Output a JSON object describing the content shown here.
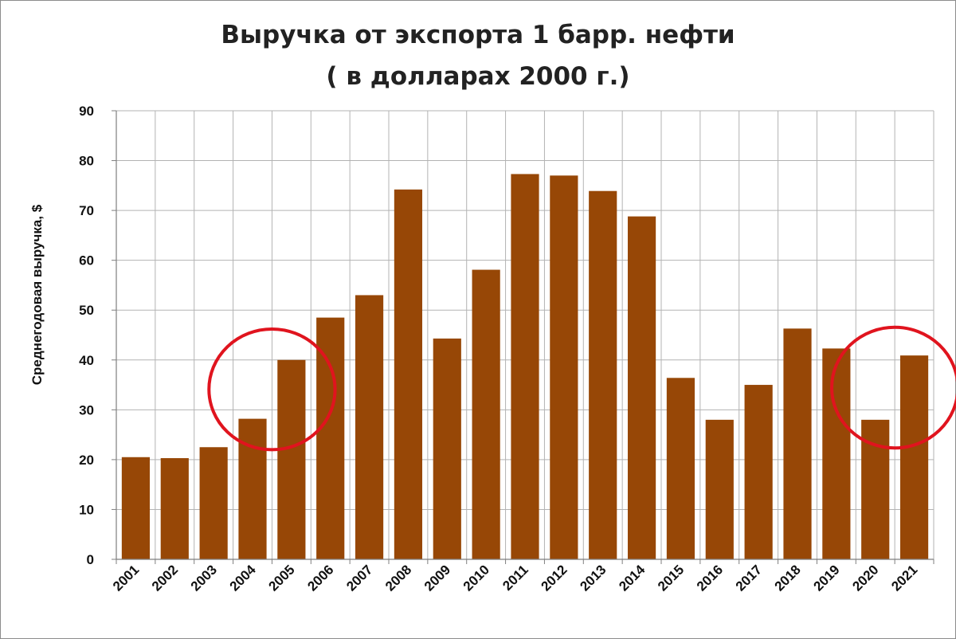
{
  "chart_data": {
    "type": "bar",
    "title": "Выручка от экспорта 1 барр. нефти",
    "subtitle": "( в долларах 2000 г.)",
    "xlabel": "",
    "ylabel": "Среднегодовая выручка, $",
    "ylim": [
      0,
      90
    ],
    "yticks": [
      0,
      10,
      20,
      30,
      40,
      50,
      60,
      70,
      80,
      90
    ],
    "categories": [
      "2001",
      "2002",
      "2003",
      "2004",
      "2005",
      "2006",
      "2007",
      "2008",
      "2009",
      "2010",
      "2011",
      "2012",
      "2013",
      "2014",
      "2015",
      "2016",
      "2017",
      "2018",
      "2019",
      "2020",
      "2021"
    ],
    "values": [
      20.5,
      20.3,
      22.5,
      28.2,
      40.0,
      48.5,
      53.0,
      74.2,
      44.3,
      58.1,
      77.3,
      77.0,
      73.9,
      68.8,
      36.4,
      28.0,
      35.0,
      46.3,
      42.3,
      28.0,
      40.9
    ],
    "bar_color": "#974706",
    "grid": true,
    "legend": "none",
    "annotations": [
      {
        "type": "circle",
        "color": "#e0141e",
        "highlights": [
          "2004",
          "2005"
        ]
      },
      {
        "type": "circle",
        "color": "#e0141e",
        "highlights": [
          "2020",
          "2021"
        ]
      }
    ]
  }
}
